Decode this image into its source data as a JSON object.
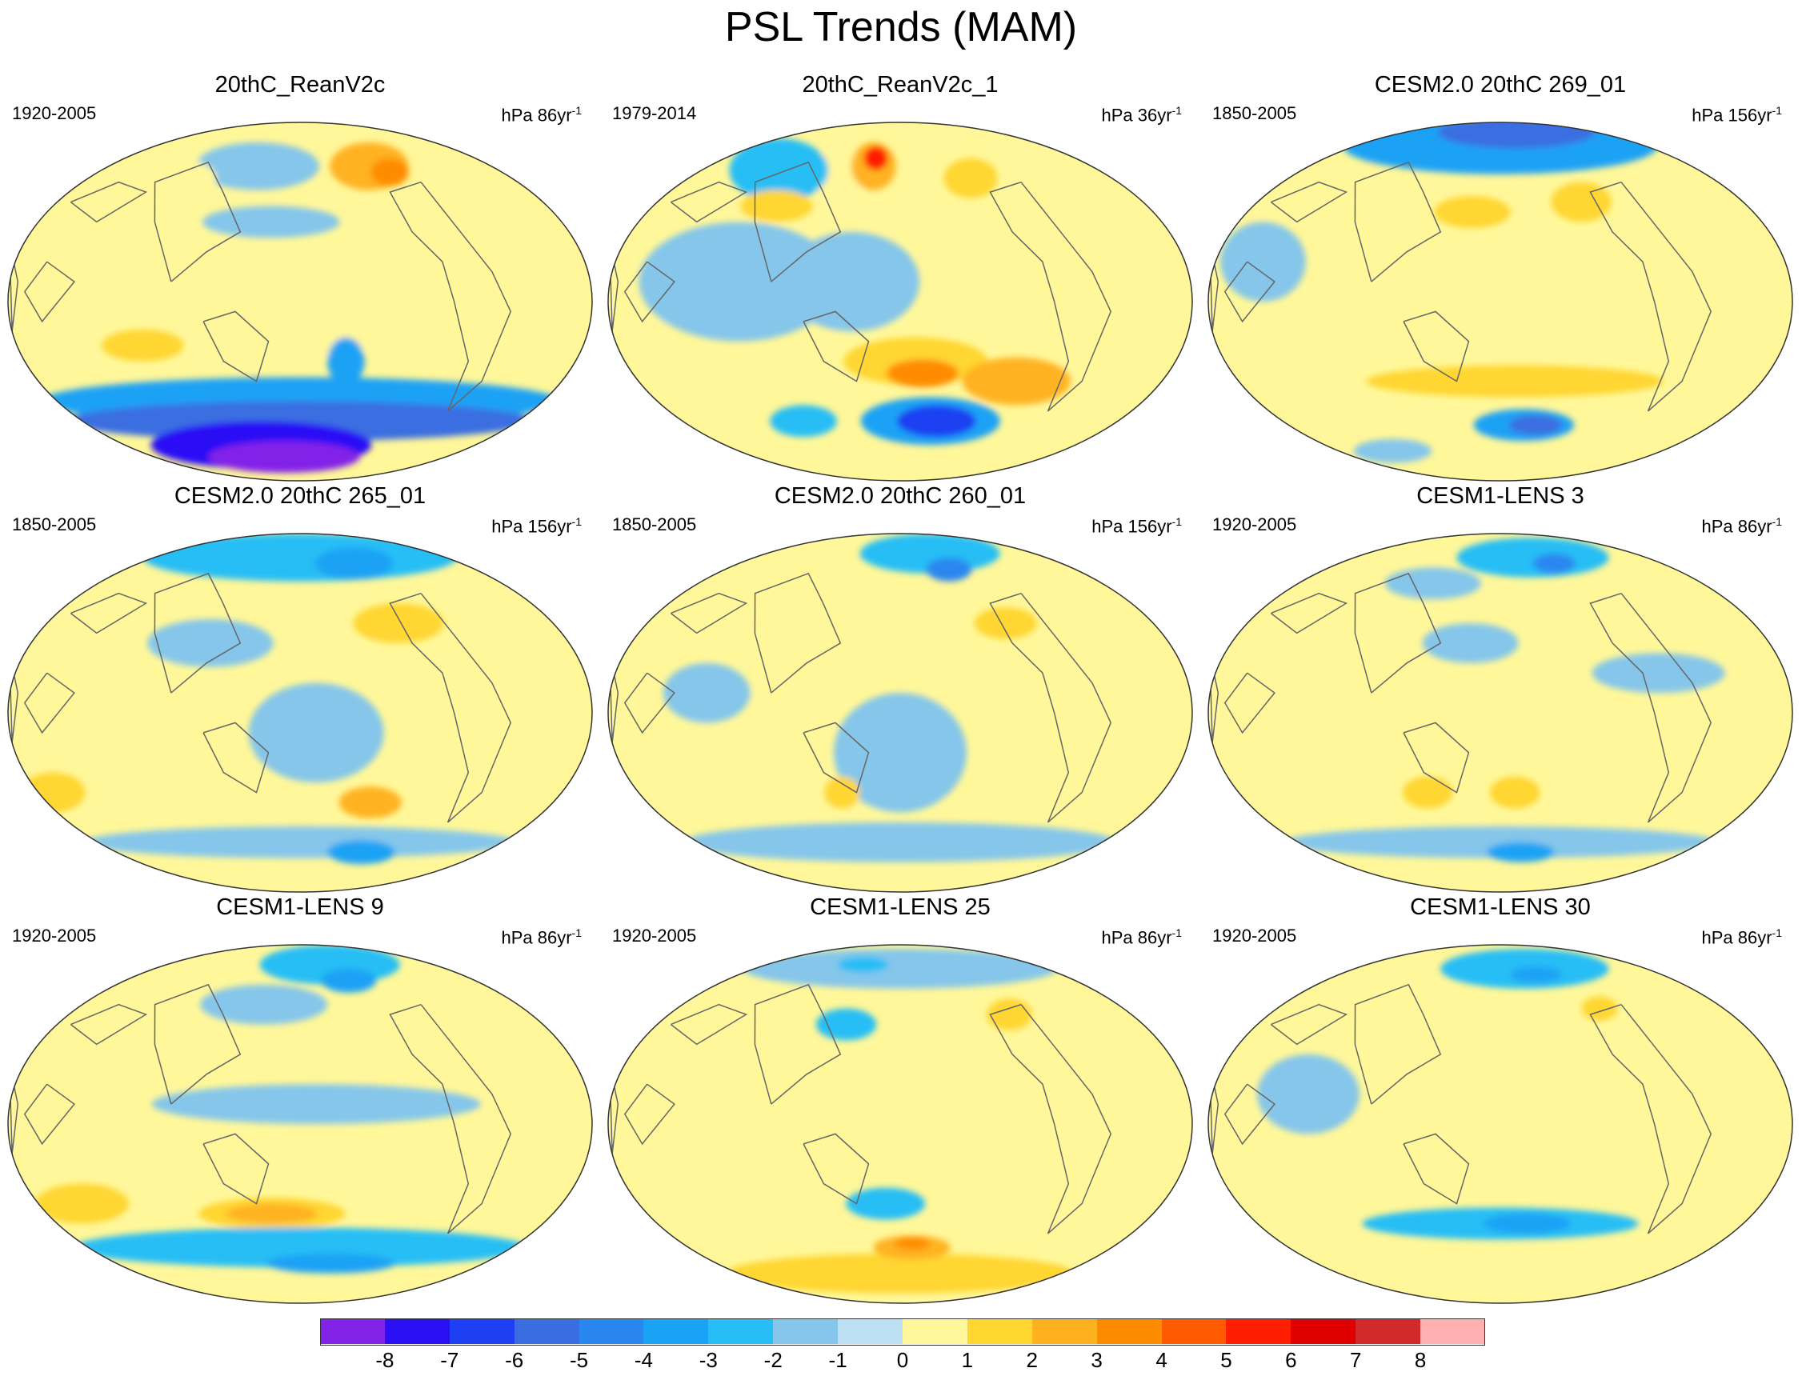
{
  "title": "PSL Trends (MAM)",
  "panels": [
    {
      "title": "20thC_ReanV2c",
      "period": "1920-2005",
      "units": "hPa 86yr",
      "exp": "-1",
      "anomalies": [
        {
          "lon": 65,
          "lat": 68,
          "rx": 34,
          "ry": 12,
          "level": 3
        },
        {
          "lon": 80,
          "lat": 65,
          "rx": 14,
          "ry": 7,
          "level": 4
        },
        {
          "lon": -40,
          "lat": 68,
          "rx": 55,
          "ry": 12,
          "level": -1
        },
        {
          "lon": -100,
          "lat": 62,
          "rx": 26,
          "ry": 9,
          "level": 1
        },
        {
          "lon": -15,
          "lat": 15,
          "rx": 80,
          "ry": 11,
          "level": 1
        },
        {
          "lon": -20,
          "lat": 40,
          "rx": 45,
          "ry": 8,
          "level": -1
        },
        {
          "lon": -100,
          "lat": -22,
          "rx": 24,
          "ry": 8,
          "level": 2
        },
        {
          "lon": -5,
          "lat": -20,
          "rx": 55,
          "ry": 8,
          "level": 1
        },
        {
          "lon": 30,
          "lat": -30,
          "rx": 10,
          "ry": 12,
          "level": -3
        },
        {
          "lon": 0,
          "lat": -50,
          "rx": 190,
          "ry": 12,
          "level": -3
        },
        {
          "lon": 0,
          "lat": -60,
          "rx": 190,
          "ry": 10,
          "level": -5
        },
        {
          "lon": -40,
          "lat": -72,
          "rx": 110,
          "ry": 12,
          "level": -7
        },
        {
          "lon": -20,
          "lat": -78,
          "rx": 90,
          "ry": 8,
          "level": -8
        }
      ]
    },
    {
      "title": "20thC_ReanV2c_1",
      "period": "1979-2014",
      "units": "hPa 36yr",
      "exp": "-1",
      "anomalies": [
        {
          "lon": -110,
          "lat": 66,
          "rx": 42,
          "ry": 16,
          "level": -2
        },
        {
          "lon": -55,
          "lat": 64,
          "rx": 28,
          "ry": 12,
          "level": 1
        },
        {
          "lon": -25,
          "lat": 68,
          "rx": 18,
          "ry": 12,
          "level": 3
        },
        {
          "lon": -25,
          "lat": 72,
          "rx": 9,
          "ry": 6,
          "level": 6
        },
        {
          "lon": -90,
          "lat": 48,
          "rx": 24,
          "ry": 8,
          "level": 2
        },
        {
          "lon": 60,
          "lat": 62,
          "rx": 20,
          "ry": 10,
          "level": 2
        },
        {
          "lon": -100,
          "lat": 10,
          "rx": 60,
          "ry": 30,
          "level": -1
        },
        {
          "lon": -30,
          "lat": 10,
          "rx": 40,
          "ry": 25,
          "level": -1
        },
        {
          "lon": 10,
          "lat": -30,
          "rx": 45,
          "ry": 12,
          "level": 2
        },
        {
          "lon": 15,
          "lat": -36,
          "rx": 22,
          "ry": 7,
          "level": 4
        },
        {
          "lon": 80,
          "lat": -40,
          "rx": 35,
          "ry": 12,
          "level": 3
        },
        {
          "lon": 25,
          "lat": -60,
          "rx": 55,
          "ry": 12,
          "level": -3
        },
        {
          "lon": 30,
          "lat": -60,
          "rx": 30,
          "ry": 8,
          "level": -6
        },
        {
          "lon": -80,
          "lat": -60,
          "rx": 25,
          "ry": 8,
          "level": -2
        }
      ]
    },
    {
      "title": "CESM2.0 20thC 269_01",
      "period": "1850-2005",
      "units": "hPa 156yr",
      "exp": "-1",
      "anomalies": [
        {
          "lon": 0,
          "lat": 78,
          "rx": 190,
          "ry": 14,
          "level": -3
        },
        {
          "lon": 30,
          "lat": 85,
          "rx": 120,
          "ry": 8,
          "level": -5
        },
        {
          "lon": -20,
          "lat": 45,
          "rx": 25,
          "ry": 8,
          "level": 2
        },
        {
          "lon": 60,
          "lat": 50,
          "rx": 20,
          "ry": 10,
          "level": 2
        },
        {
          "lon": -150,
          "lat": 20,
          "rx": 25,
          "ry": 20,
          "level": -1
        },
        {
          "lon": 10,
          "lat": -40,
          "rx": 100,
          "ry": 8,
          "level": 2
        },
        {
          "lon": 20,
          "lat": -62,
          "rx": 40,
          "ry": 8,
          "level": -3
        },
        {
          "lon": 30,
          "lat": -62,
          "rx": 20,
          "ry": 5,
          "level": -5
        },
        {
          "lon": -120,
          "lat": -75,
          "rx": 40,
          "ry": 6,
          "level": -1
        }
      ]
    },
    {
      "title": "CESM2.0 20thC 265_01",
      "period": "1850-2005",
      "units": "hPa 156yr",
      "exp": "-1",
      "anomalies": [
        {
          "lon": 0,
          "lat": 78,
          "rx": 190,
          "ry": 12,
          "level": -2
        },
        {
          "lon": 60,
          "lat": 75,
          "rx": 40,
          "ry": 8,
          "level": -3
        },
        {
          "lon": 70,
          "lat": 45,
          "rx": 30,
          "ry": 10,
          "level": 2
        },
        {
          "lon": -60,
          "lat": 35,
          "rx": 40,
          "ry": 12,
          "level": -1
        },
        {
          "lon": 10,
          "lat": -10,
          "rx": 40,
          "ry": 25,
          "level": -1
        },
        {
          "lon": 50,
          "lat": -45,
          "rx": 20,
          "ry": 8,
          "level": 3
        },
        {
          "lon": -170,
          "lat": -40,
          "rx": 20,
          "ry": 10,
          "level": 2
        },
        {
          "lon": 0,
          "lat": -65,
          "rx": 190,
          "ry": 8,
          "level": -1
        },
        {
          "lon": 60,
          "lat": -70,
          "rx": 30,
          "ry": 6,
          "level": -3
        }
      ]
    },
    {
      "title": "CESM2.0 20thC 260_01",
      "period": "1850-2005",
      "units": "hPa 156yr",
      "exp": "-1",
      "anomalies": [
        {
          "lon": 40,
          "lat": 80,
          "rx": 90,
          "ry": 10,
          "level": -2
        },
        {
          "lon": 50,
          "lat": 72,
          "rx": 20,
          "ry": 6,
          "level": -4
        },
        {
          "lon": 75,
          "lat": 45,
          "rx": 20,
          "ry": 8,
          "level": 2
        },
        {
          "lon": 0,
          "lat": -20,
          "rx": 40,
          "ry": 30,
          "level": -1
        },
        {
          "lon": -40,
          "lat": -40,
          "rx": 10,
          "ry": 8,
          "level": 2
        },
        {
          "lon": 0,
          "lat": -65,
          "rx": 190,
          "ry": 10,
          "level": -1
        },
        {
          "lon": -120,
          "lat": 10,
          "rx": 25,
          "ry": 15,
          "level": -1
        }
      ]
    },
    {
      "title": "CESM1-LENS 3",
      "period": "1920-2005",
      "units": "hPa 86yr",
      "exp": "-1",
      "anomalies": [
        {
          "lon": 40,
          "lat": 78,
          "rx": 90,
          "ry": 10,
          "level": -2
        },
        {
          "lon": 60,
          "lat": 75,
          "rx": 20,
          "ry": 5,
          "level": -4
        },
        {
          "lon": -60,
          "lat": 65,
          "rx": 40,
          "ry": 8,
          "level": -1
        },
        {
          "lon": -20,
          "lat": 35,
          "rx": 30,
          "ry": 10,
          "level": -1
        },
        {
          "lon": 100,
          "lat": 20,
          "rx": 40,
          "ry": 10,
          "level": -1
        },
        {
          "lon": 10,
          "lat": -40,
          "rx": 15,
          "ry": 8,
          "level": 2
        },
        {
          "lon": -50,
          "lat": -40,
          "rx": 15,
          "ry": 8,
          "level": 2
        },
        {
          "lon": 0,
          "lat": -65,
          "rx": 190,
          "ry": 8,
          "level": -1
        },
        {
          "lon": 20,
          "lat": -70,
          "rx": 30,
          "ry": 5,
          "level": -3
        }
      ]
    },
    {
      "title": "CESM1-LENS 9",
      "period": "1920-2005",
      "units": "hPa 86yr",
      "exp": "-1",
      "anomalies": [
        {
          "lon": 40,
          "lat": 80,
          "rx": 90,
          "ry": 10,
          "level": -2
        },
        {
          "lon": 50,
          "lat": 72,
          "rx": 25,
          "ry": 6,
          "level": -3
        },
        {
          "lon": -30,
          "lat": 60,
          "rx": 50,
          "ry": 10,
          "level": -1
        },
        {
          "lon": 10,
          "lat": 10,
          "rx": 100,
          "ry": 10,
          "level": -1
        },
        {
          "lon": -150,
          "lat": -40,
          "rx": 30,
          "ry": 10,
          "level": 2
        },
        {
          "lon": -20,
          "lat": -45,
          "rx": 50,
          "ry": 8,
          "level": 2
        },
        {
          "lon": -20,
          "lat": -45,
          "rx": 30,
          "ry": 5,
          "level": 3
        },
        {
          "lon": 0,
          "lat": -62,
          "rx": 190,
          "ry": 10,
          "level": -2
        },
        {
          "lon": 30,
          "lat": -70,
          "rx": 60,
          "ry": 5,
          "level": -3
        }
      ]
    },
    {
      "title": "CESM1-LENS 25",
      "period": "1920-2005",
      "units": "hPa 86yr",
      "exp": "-1",
      "anomalies": [
        {
          "lon": 0,
          "lat": 78,
          "rx": 190,
          "ry": 10,
          "level": -1
        },
        {
          "lon": -50,
          "lat": 80,
          "rx": 30,
          "ry": 4,
          "level": -2
        },
        {
          "lon": -40,
          "lat": 50,
          "rx": 20,
          "ry": 8,
          "level": -2
        },
        {
          "lon": 85,
          "lat": 55,
          "rx": 15,
          "ry": 8,
          "level": 2
        },
        {
          "lon": -10,
          "lat": -40,
          "rx": 25,
          "ry": 8,
          "level": -2
        },
        {
          "lon": 0,
          "lat": -75,
          "rx": 190,
          "ry": 10,
          "level": 2
        },
        {
          "lon": 10,
          "lat": -62,
          "rx": 30,
          "ry": 6,
          "level": 3
        },
        {
          "lon": 10,
          "lat": -60,
          "rx": 12,
          "ry": 3,
          "level": 4
        }
      ]
    },
    {
      "title": "CESM1-LENS 30",
      "period": "1920-2005",
      "units": "hPa 86yr",
      "exp": "-1",
      "anomalies": [
        {
          "lon": 30,
          "lat": 78,
          "rx": 100,
          "ry": 10,
          "level": -2
        },
        {
          "lon": 40,
          "lat": 75,
          "rx": 25,
          "ry": 4,
          "level": -3
        },
        {
          "lon": 80,
          "lat": 58,
          "rx": 12,
          "ry": 6,
          "level": 2
        },
        {
          "lon": -120,
          "lat": 15,
          "rx": 30,
          "ry": 20,
          "level": -1
        },
        {
          "lon": 0,
          "lat": -50,
          "rx": 100,
          "ry": 8,
          "level": -2
        },
        {
          "lon": 20,
          "lat": -50,
          "rx": 30,
          "ry": 5,
          "level": -3
        },
        {
          "lon": 0,
          "lat": -75,
          "rx": 160,
          "ry": 8,
          "level": 1
        }
      ]
    }
  ],
  "colorbar": {
    "labels": [
      "-8",
      "-7",
      "-6",
      "-5",
      "-4",
      "-3",
      "-2",
      "-1",
      "0",
      "1",
      "2",
      "3",
      "4",
      "5",
      "6",
      "7",
      "8"
    ],
    "colors": [
      "#8223e8",
      "#2b0ff5",
      "#1f3ff2",
      "#3a6ee0",
      "#2a87f0",
      "#1aa2f5",
      "#27bef5",
      "#85c6ea",
      "#bde0f3",
      "#fff79a",
      "#ffd630",
      "#ffb220",
      "#ff8c00",
      "#ff5a00",
      "#ff1e00",
      "#e00000",
      "#d22a2a",
      "#ffb0b0"
    ]
  }
}
